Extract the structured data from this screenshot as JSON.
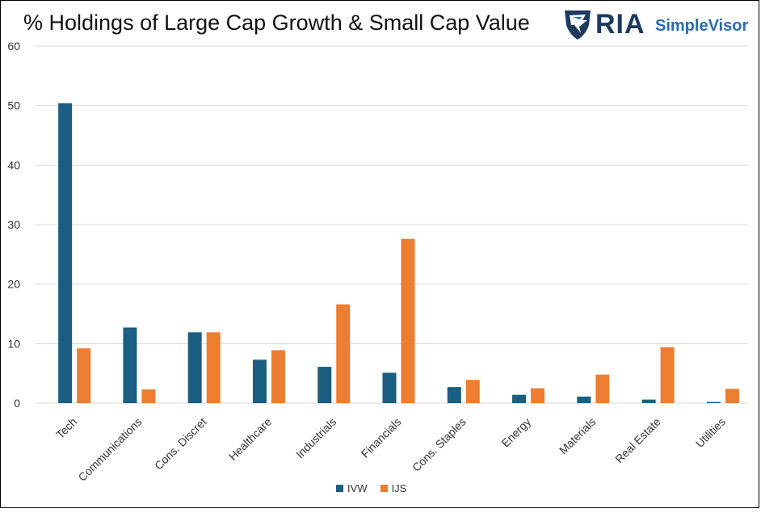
{
  "title": "% Holdings of Large Cap Growth & Small Cap Value",
  "logo": {
    "brand": "RIA",
    "product": "SimpleVisor",
    "icon": "eagle-shield-icon"
  },
  "chart_data": {
    "type": "bar",
    "title": "% Holdings of Large Cap Growth & Small Cap Value",
    "xlabel": "",
    "ylabel": "",
    "ylim": [
      0,
      60
    ],
    "yticks": [
      0,
      10,
      20,
      30,
      40,
      50,
      60
    ],
    "grid": true,
    "legend_position": "bottom",
    "categories": [
      "Tech",
      "Communications",
      "Cons. Discret",
      "Healthcare",
      "Industrials",
      "Financials",
      "Cons. Staples",
      "Energy",
      "Materials",
      "Real Estate",
      "Utilities"
    ],
    "series": [
      {
        "name": "IVW",
        "color": "#1b5e82",
        "values": [
          50.4,
          12.7,
          11.9,
          7.3,
          6.1,
          5.1,
          2.7,
          1.4,
          1.1,
          0.6,
          0.2
        ]
      },
      {
        "name": "IJS",
        "color": "#ed7d31",
        "values": [
          9.2,
          2.3,
          11.9,
          8.9,
          16.6,
          27.6,
          3.9,
          2.5,
          4.8,
          9.4,
          2.4
        ]
      }
    ]
  }
}
